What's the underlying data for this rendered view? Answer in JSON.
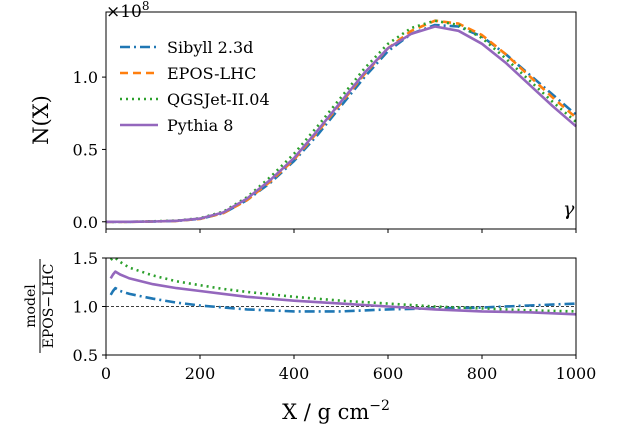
{
  "chart_data": [
    {
      "type": "line",
      "panel": "top",
      "ylabel": "N(X)",
      "multiplier": "×10",
      "multiplier_exp": "8",
      "annotation": "γ",
      "ylim": [
        -0.05,
        1.45
      ],
      "yticks": [
        0.0,
        0.5,
        1.0
      ],
      "ytick_labels": [
        "0.0",
        "0.5",
        "1.0"
      ],
      "legend_position": "top-left",
      "x": [
        0,
        50,
        100,
        150,
        200,
        250,
        300,
        350,
        400,
        450,
        500,
        550,
        600,
        650,
        700,
        750,
        800,
        850,
        900,
        950,
        1000
      ],
      "series": [
        {
          "name": "Sibyll 2.3d",
          "color": "#1f77b4",
          "dash": "10,4,2,4",
          "values": [
            0.0,
            0.0,
            0.002,
            0.006,
            0.02,
            0.06,
            0.15,
            0.27,
            0.42,
            0.6,
            0.8,
            1.0,
            1.18,
            1.3,
            1.36,
            1.35,
            1.28,
            1.16,
            1.02,
            0.88,
            0.74
          ]
        },
        {
          "name": "EPOS-LHC",
          "color": "#ff7f0e",
          "dash": "8,5",
          "values": [
            0.0,
            0.0,
            0.002,
            0.006,
            0.02,
            0.06,
            0.15,
            0.28,
            0.43,
            0.62,
            0.82,
            1.02,
            1.2,
            1.32,
            1.39,
            1.37,
            1.29,
            1.16,
            1.01,
            0.86,
            0.72
          ]
        },
        {
          "name": "QGSJet-II.04",
          "color": "#2ca02c",
          "dash": "2,4",
          "values": [
            0.0,
            0.0,
            0.003,
            0.008,
            0.025,
            0.07,
            0.17,
            0.31,
            0.47,
            0.66,
            0.86,
            1.06,
            1.23,
            1.34,
            1.39,
            1.36,
            1.27,
            1.13,
            0.98,
            0.83,
            0.69
          ]
        },
        {
          "name": "Pythia 8",
          "color": "#9467bd",
          "dash": "",
          "values": [
            0.0,
            0.0,
            0.002,
            0.007,
            0.022,
            0.065,
            0.16,
            0.29,
            0.44,
            0.63,
            0.83,
            1.03,
            1.2,
            1.3,
            1.35,
            1.32,
            1.23,
            1.1,
            0.95,
            0.8,
            0.66
          ]
        }
      ]
    },
    {
      "type": "line",
      "panel": "bottom",
      "ylabel_num": "model",
      "ylabel_den": "EPOS−LHC",
      "xlabel": "X / g cm",
      "xlabel_exp": "−2",
      "xlim": [
        0,
        1000
      ],
      "ylim": [
        0.5,
        1.5
      ],
      "xticks": [
        0,
        200,
        400,
        600,
        800,
        1000
      ],
      "xtick_labels": [
        "0",
        "200",
        "400",
        "600",
        "800",
        "1000"
      ],
      "yticks": [
        0.5,
        1.0,
        1.5
      ],
      "ytick_labels": [
        "0.5",
        "1.0",
        "1.5"
      ],
      "reference_line": 1.0,
      "x": [
        10,
        15,
        20,
        30,
        50,
        100,
        150,
        200,
        250,
        300,
        400,
        500,
        600,
        700,
        800,
        900,
        1000
      ],
      "series": [
        {
          "name": "Sibyll 2.3d",
          "color": "#1f77b4",
          "dash": "10,4,2,4",
          "values": [
            1.12,
            1.16,
            1.19,
            1.16,
            1.13,
            1.08,
            1.04,
            1.01,
            0.99,
            0.97,
            0.95,
            0.95,
            0.97,
            0.98,
            0.99,
            1.01,
            1.03
          ]
        },
        {
          "name": "QGSJet-II.04",
          "color": "#2ca02c",
          "dash": "2,4",
          "values": [
            1.48,
            1.5,
            1.5,
            1.46,
            1.4,
            1.32,
            1.26,
            1.22,
            1.18,
            1.15,
            1.1,
            1.06,
            1.03,
            1.0,
            0.98,
            0.96,
            0.95
          ]
        },
        {
          "name": "Pythia 8",
          "color": "#9467bd",
          "dash": "",
          "values": [
            1.29,
            1.33,
            1.36,
            1.33,
            1.29,
            1.23,
            1.19,
            1.16,
            1.13,
            1.1,
            1.06,
            1.03,
            1.0,
            0.97,
            0.95,
            0.94,
            0.92
          ]
        }
      ]
    }
  ]
}
